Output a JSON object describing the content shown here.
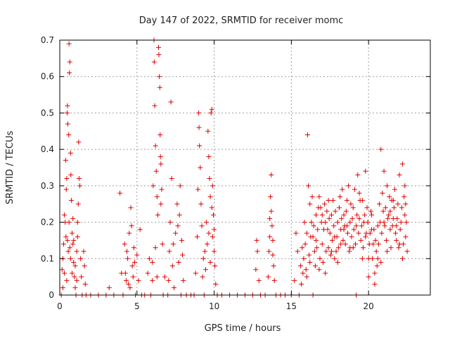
{
  "chart_data": {
    "type": "scatter",
    "title": "Day 147 of 2022, SRMTID for receiver momc",
    "xlabel": "GPS time / hours",
    "ylabel": "SRMTID / TECUs",
    "xlim": [
      0,
      24
    ],
    "ylim": [
      0,
      0.7
    ],
    "xticks": [
      0,
      5,
      10,
      15,
      20
    ],
    "yticks": [
      0,
      0.1,
      0.2,
      0.3,
      0.4,
      0.5,
      0.6,
      0.7
    ],
    "xtick_labels": [
      "0",
      "5",
      "10",
      "15",
      "20"
    ],
    "ytick_labels": [
      "0",
      "0.1",
      "0.2",
      "0.3",
      "0.4",
      "0.5",
      "0.6",
      "0.7"
    ],
    "grid": true,
    "marker": "plus",
    "marker_color": "#e00000",
    "points": [
      [
        0.1,
        0.0
      ],
      [
        0.15,
        0.07
      ],
      [
        0.2,
        0.02
      ],
      [
        0.25,
        0.14
      ],
      [
        0.3,
        0.06
      ],
      [
        0.35,
        0.2
      ],
      [
        0.38,
        0.37
      ],
      [
        0.42,
        0.29
      ],
      [
        0.45,
        0.32
      ],
      [
        0.48,
        0.5
      ],
      [
        0.5,
        0.52
      ],
      [
        0.52,
        0.47
      ],
      [
        0.55,
        0.12
      ],
      [
        0.58,
        0.44
      ],
      [
        0.6,
        0.69
      ],
      [
        0.62,
        0.61
      ],
      [
        0.65,
        0.64
      ],
      [
        0.7,
        0.39
      ],
      [
        0.72,
        0.33
      ],
      [
        0.75,
        0.26
      ],
      [
        0.8,
        0.17
      ],
      [
        0.85,
        0.14
      ],
      [
        0.9,
        0.09
      ],
      [
        0.95,
        0.05
      ],
      [
        1.0,
        0.02
      ],
      [
        1.05,
        0.0
      ],
      [
        1.1,
        0.12
      ],
      [
        1.15,
        0.2
      ],
      [
        1.2,
        0.25
      ],
      [
        1.22,
        0.42
      ],
      [
        1.25,
        0.32
      ],
      [
        1.3,
        0.3
      ],
      [
        1.35,
        0.1
      ],
      [
        1.4,
        0.05
      ],
      [
        1.45,
        0.0
      ],
      [
        1.55,
        0.12
      ],
      [
        1.6,
        0.08
      ],
      [
        1.65,
        0.03
      ],
      [
        1.7,
        0.0
      ],
      [
        0.2,
        0.1
      ],
      [
        0.3,
        0.22
      ],
      [
        0.4,
        0.16
      ],
      [
        0.5,
        0.15
      ],
      [
        0.6,
        0.2
      ],
      [
        0.7,
        0.1
      ],
      [
        0.8,
        0.06
      ],
      [
        0.9,
        0.15
      ],
      [
        1.0,
        0.08
      ],
      [
        1.1,
        0.04
      ],
      [
        0.45,
        0.04
      ],
      [
        0.65,
        0.13
      ],
      [
        0.85,
        0.21
      ],
      [
        1.15,
        0.16
      ],
      [
        2.0,
        0.0
      ],
      [
        2.5,
        0.0
      ],
      [
        3.0,
        0.0
      ],
      [
        3.2,
        0.02
      ],
      [
        3.5,
        0.0
      ],
      [
        3.9,
        0.28
      ],
      [
        4.0,
        0.06
      ],
      [
        4.1,
        0.0
      ],
      [
        4.2,
        0.14
      ],
      [
        4.3,
        0.04
      ],
      [
        4.4,
        0.1
      ],
      [
        4.5,
        0.17
      ],
      [
        4.55,
        0.02
      ],
      [
        4.6,
        0.24
      ],
      [
        4.7,
        0.08
      ],
      [
        4.8,
        0.13
      ],
      [
        4.9,
        0.0
      ],
      [
        5.0,
        0.11
      ],
      [
        5.1,
        0.04
      ],
      [
        5.2,
        0.18
      ],
      [
        5.3,
        0.0
      ],
      [
        5.5,
        0.0
      ],
      [
        4.25,
        0.06
      ],
      [
        4.35,
        0.12
      ],
      [
        4.45,
        0.03
      ],
      [
        4.65,
        0.19
      ],
      [
        4.75,
        0.05
      ],
      [
        4.85,
        0.09
      ],
      [
        5.7,
        0.06
      ],
      [
        5.8,
        0.1
      ],
      [
        5.9,
        0.0
      ],
      [
        6.0,
        0.04
      ],
      [
        6.05,
        0.3
      ],
      [
        6.1,
        0.7
      ],
      [
        6.12,
        0.64
      ],
      [
        6.15,
        0.52
      ],
      [
        6.2,
        0.41
      ],
      [
        6.25,
        0.34
      ],
      [
        6.3,
        0.27
      ],
      [
        6.35,
        0.22
      ],
      [
        6.4,
        0.68
      ],
      [
        6.42,
        0.66
      ],
      [
        6.45,
        0.6
      ],
      [
        6.48,
        0.57
      ],
      [
        6.5,
        0.44
      ],
      [
        6.52,
        0.38
      ],
      [
        6.55,
        0.36
      ],
      [
        6.6,
        0.29
      ],
      [
        6.65,
        0.14
      ],
      [
        6.7,
        0.0
      ],
      [
        6.8,
        0.05
      ],
      [
        7.0,
        0.0
      ],
      [
        7.1,
        0.12
      ],
      [
        7.15,
        0.2
      ],
      [
        7.2,
        0.53
      ],
      [
        7.25,
        0.32
      ],
      [
        7.3,
        0.08
      ],
      [
        7.4,
        0.02
      ],
      [
        7.5,
        0.17
      ],
      [
        7.6,
        0.25
      ],
      [
        7.7,
        0.09
      ],
      [
        7.8,
        0.3
      ],
      [
        7.85,
        0.0
      ],
      [
        7.9,
        0.15
      ],
      [
        8.0,
        0.04
      ],
      [
        8.2,
        0.0
      ],
      [
        8.5,
        0.0
      ],
      [
        6.0,
        0.09
      ],
      [
        6.2,
        0.13
      ],
      [
        6.3,
        0.05
      ],
      [
        6.55,
        0.25
      ],
      [
        7.05,
        0.04
      ],
      [
        7.35,
        0.14
      ],
      [
        7.65,
        0.19
      ],
      [
        7.75,
        0.22
      ],
      [
        7.95,
        0.11
      ],
      [
        8.7,
        0.0
      ],
      [
        8.8,
        0.06
      ],
      [
        8.9,
        0.16
      ],
      [
        8.95,
        0.29
      ],
      [
        9.0,
        0.5
      ],
      [
        9.02,
        0.46
      ],
      [
        9.05,
        0.41
      ],
      [
        9.1,
        0.35
      ],
      [
        9.15,
        0.25
      ],
      [
        9.2,
        0.19
      ],
      [
        9.25,
        0.05
      ],
      [
        9.3,
        0.1
      ],
      [
        9.35,
        0.0
      ],
      [
        9.4,
        0.12
      ],
      [
        9.5,
        0.2
      ],
      [
        9.55,
        0.14
      ],
      [
        9.6,
        0.45
      ],
      [
        9.65,
        0.38
      ],
      [
        9.7,
        0.32
      ],
      [
        9.75,
        0.27
      ],
      [
        9.8,
        0.5
      ],
      [
        9.85,
        0.51
      ],
      [
        9.9,
        0.3
      ],
      [
        9.95,
        0.22
      ],
      [
        10.0,
        0.18
      ],
      [
        10.05,
        0.08
      ],
      [
        10.1,
        0.03
      ],
      [
        10.2,
        0.0
      ],
      [
        9.45,
        0.07
      ],
      [
        9.65,
        0.17
      ],
      [
        9.75,
        0.09
      ],
      [
        9.85,
        0.24
      ],
      [
        9.9,
        0.16
      ],
      [
        10.0,
        0.12
      ],
      [
        10.5,
        0.0
      ],
      [
        11.0,
        0.0
      ],
      [
        11.5,
        0.0
      ],
      [
        12.0,
        0.0
      ],
      [
        12.5,
        0.0
      ],
      [
        12.7,
        0.07
      ],
      [
        12.75,
        0.15
      ],
      [
        12.8,
        0.12
      ],
      [
        12.9,
        0.04
      ],
      [
        13.0,
        0.0
      ],
      [
        13.3,
        0.0
      ],
      [
        13.5,
        0.05
      ],
      [
        13.55,
        0.12
      ],
      [
        13.6,
        0.21
      ],
      [
        13.65,
        0.27
      ],
      [
        13.7,
        0.33
      ],
      [
        13.75,
        0.19
      ],
      [
        13.8,
        0.15
      ],
      [
        13.85,
        0.08
      ],
      [
        13.9,
        0.04
      ],
      [
        14.0,
        0.0
      ],
      [
        14.3,
        0.0
      ],
      [
        14.6,
        0.0
      ],
      [
        15.0,
        0.0
      ],
      [
        15.2,
        0.04
      ],
      [
        15.3,
        0.17
      ],
      [
        15.4,
        0.12
      ],
      [
        15.5,
        0.0
      ],
      [
        13.6,
        0.16
      ],
      [
        13.7,
        0.23
      ],
      [
        13.8,
        0.11
      ],
      [
        15.6,
        0.08
      ],
      [
        15.7,
        0.13
      ],
      [
        15.75,
        0.06
      ],
      [
        15.8,
        0.1
      ],
      [
        15.9,
        0.14
      ],
      [
        16.0,
        0.17
      ],
      [
        16.05,
        0.44
      ],
      [
        16.1,
        0.3
      ],
      [
        16.2,
        0.25
      ],
      [
        16.3,
        0.2
      ],
      [
        16.4,
        0.16
      ],
      [
        16.5,
        0.12
      ],
      [
        16.6,
        0.22
      ],
      [
        16.7,
        0.18
      ],
      [
        16.8,
        0.27
      ],
      [
        16.9,
        0.24
      ],
      [
        17.0,
        0.14
      ],
      [
        17.1,
        0.18
      ],
      [
        17.2,
        0.2
      ],
      [
        17.3,
        0.23
      ],
      [
        17.4,
        0.13
      ],
      [
        17.5,
        0.17
      ],
      [
        17.6,
        0.22
      ],
      [
        17.7,
        0.26
      ],
      [
        17.8,
        0.16
      ],
      [
        17.9,
        0.12
      ],
      [
        18.0,
        0.2
      ],
      [
        18.1,
        0.24
      ],
      [
        18.2,
        0.18
      ],
      [
        18.3,
        0.29
      ],
      [
        18.4,
        0.22
      ],
      [
        18.5,
        0.14
      ],
      [
        18.6,
        0.26
      ],
      [
        18.7,
        0.3
      ],
      [
        18.8,
        0.2
      ],
      [
        18.9,
        0.16
      ],
      [
        19.0,
        0.24
      ],
      [
        19.1,
        0.29
      ],
      [
        19.2,
        0.19
      ],
      [
        19.3,
        0.33
      ],
      [
        19.4,
        0.21
      ],
      [
        19.5,
        0.15
      ],
      [
        19.6,
        0.26
      ],
      [
        19.7,
        0.2
      ],
      [
        19.8,
        0.34
      ],
      [
        19.9,
        0.24
      ],
      [
        20.0,
        0.1
      ],
      [
        20.1,
        0.17
      ],
      [
        20.2,
        0.22
      ],
      [
        20.3,
        0.14
      ],
      [
        20.4,
        0.06
      ],
      [
        20.5,
        0.12
      ],
      [
        20.6,
        0.19
      ],
      [
        20.7,
        0.25
      ],
      [
        20.8,
        0.4
      ],
      [
        20.9,
        0.28
      ],
      [
        21.0,
        0.34
      ],
      [
        21.1,
        0.24
      ],
      [
        21.2,
        0.3
      ],
      [
        21.3,
        0.22
      ],
      [
        21.4,
        0.18
      ],
      [
        21.5,
        0.26
      ],
      [
        21.6,
        0.21
      ],
      [
        21.7,
        0.29
      ],
      [
        21.8,
        0.15
      ],
      [
        21.9,
        0.25
      ],
      [
        22.0,
        0.33
      ],
      [
        22.1,
        0.2
      ],
      [
        22.2,
        0.36
      ],
      [
        22.3,
        0.27
      ],
      [
        22.4,
        0.16
      ],
      [
        22.5,
        0.12
      ],
      [
        15.65,
        0.03
      ],
      [
        15.85,
        0.2
      ],
      [
        15.95,
        0.07
      ],
      [
        16.15,
        0.11
      ],
      [
        16.25,
        0.16
      ],
      [
        16.35,
        0.27
      ],
      [
        16.45,
        0.19
      ],
      [
        16.55,
        0.08
      ],
      [
        16.65,
        0.13
      ],
      [
        16.75,
        0.24
      ],
      [
        16.85,
        0.1
      ],
      [
        16.95,
        0.2
      ],
      [
        17.05,
        0.09
      ],
      [
        17.15,
        0.25
      ],
      [
        17.25,
        0.12
      ],
      [
        17.35,
        0.18
      ],
      [
        17.45,
        0.21
      ],
      [
        17.55,
        0.11
      ],
      [
        17.65,
        0.15
      ],
      [
        17.75,
        0.19
      ],
      [
        17.85,
        0.23
      ],
      [
        17.95,
        0.16
      ],
      [
        18.05,
        0.13
      ],
      [
        18.15,
        0.27
      ],
      [
        18.25,
        0.21
      ],
      [
        18.35,
        0.15
      ],
      [
        18.45,
        0.19
      ],
      [
        18.55,
        0.23
      ],
      [
        18.65,
        0.17
      ],
      [
        18.75,
        0.12
      ],
      [
        18.85,
        0.25
      ],
      [
        18.95,
        0.21
      ],
      [
        19.05,
        0.18
      ],
      [
        19.15,
        0.14
      ],
      [
        19.25,
        0.22
      ],
      [
        19.35,
        0.17
      ],
      [
        19.45,
        0.26
      ],
      [
        19.55,
        0.19
      ],
      [
        19.65,
        0.13
      ],
      [
        19.75,
        0.22
      ],
      [
        19.85,
        0.17
      ],
      [
        19.95,
        0.2
      ],
      [
        20.05,
        0.14
      ],
      [
        20.15,
        0.23
      ],
      [
        20.25,
        0.1
      ],
      [
        20.35,
        0.18
      ],
      [
        20.45,
        0.15
      ],
      [
        20.55,
        0.08
      ],
      [
        20.65,
        0.14
      ],
      [
        20.75,
        0.2
      ],
      [
        20.85,
        0.17
      ],
      [
        20.95,
        0.23
      ],
      [
        21.05,
        0.19
      ],
      [
        21.15,
        0.15
      ],
      [
        21.25,
        0.21
      ],
      [
        21.35,
        0.27
      ],
      [
        21.45,
        0.13
      ],
      [
        21.55,
        0.19
      ],
      [
        21.65,
        0.24
      ],
      [
        21.75,
        0.17
      ],
      [
        21.85,
        0.21
      ],
      [
        21.95,
        0.13
      ],
      [
        22.05,
        0.18
      ],
      [
        22.15,
        0.24
      ],
      [
        22.25,
        0.14
      ],
      [
        22.35,
        0.22
      ],
      [
        22.45,
        0.2
      ],
      [
        16.2,
        0.09
      ],
      [
        16.6,
        0.15
      ],
      [
        17.0,
        0.22
      ],
      [
        17.4,
        0.26
      ],
      [
        17.8,
        0.1
      ],
      [
        18.2,
        0.14
      ],
      [
        18.6,
        0.19
      ],
      [
        19.0,
        0.13
      ],
      [
        19.4,
        0.28
      ],
      [
        19.8,
        0.16
      ],
      [
        20.2,
        0.18
      ],
      [
        20.6,
        0.1
      ],
      [
        21.0,
        0.2
      ],
      [
        21.4,
        0.23
      ],
      [
        21.8,
        0.19
      ],
      [
        22.2,
        0.1
      ],
      [
        22.4,
        0.25
      ],
      [
        16.0,
        0.05
      ],
      [
        16.4,
        0.0
      ],
      [
        16.8,
        0.07
      ],
      [
        17.2,
        0.06
      ],
      [
        17.6,
        0.12
      ],
      [
        18.0,
        0.09
      ],
      [
        18.4,
        0.18
      ],
      [
        18.8,
        0.13
      ],
      [
        19.2,
        0.0
      ],
      [
        19.6,
        0.1
      ],
      [
        20.0,
        0.05
      ],
      [
        20.4,
        0.03
      ],
      [
        20.8,
        0.09
      ],
      [
        21.2,
        0.12
      ],
      [
        21.6,
        0.26
      ],
      [
        22.0,
        0.14
      ],
      [
        22.35,
        0.3
      ]
    ]
  }
}
